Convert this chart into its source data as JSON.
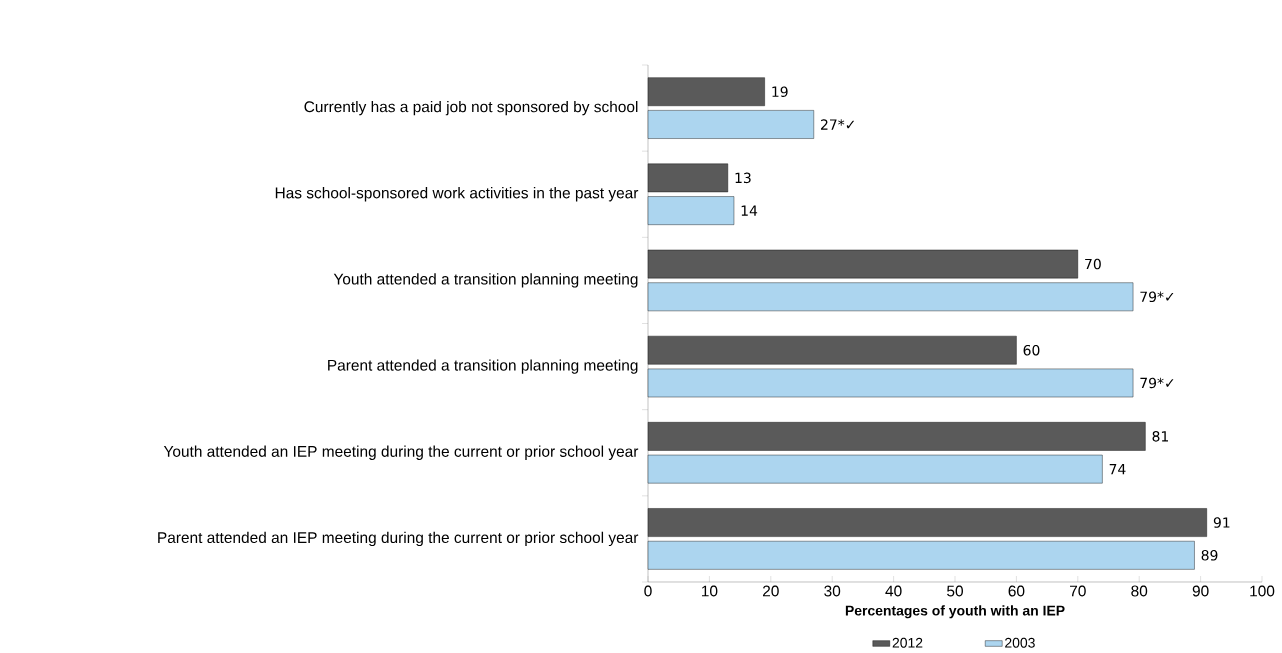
{
  "chart_data": {
    "type": "bar",
    "orientation": "horizontal",
    "categories": [
      "Currently has a paid job not sponsored by school",
      "Has school-sponsored work activities in the past year",
      "Youth attended a transition planning meeting",
      "Parent attended a transition planning meeting",
      "Youth attended an IEP meeting during the current or prior school year",
      "Parent attended an IEP meeting during the current or prior school year"
    ],
    "series": [
      {
        "name": "2012",
        "color": "#5a5a5a",
        "values": [
          19,
          13,
          70,
          60,
          81,
          91
        ],
        "value_labels": [
          "19",
          "13",
          "70",
          "60",
          "81",
          "91"
        ]
      },
      {
        "name": "2003",
        "color": "#acd5ef",
        "values": [
          27,
          14,
          79,
          79,
          74,
          89
        ],
        "value_labels": [
          "27*✓",
          "14",
          "79*✓",
          "79*✓",
          "74",
          "89"
        ]
      }
    ],
    "xlabel": "Percentages of youth with an IEP",
    "xlim": [
      0,
      100
    ],
    "xticks": [
      0,
      10,
      20,
      30,
      40,
      50,
      60,
      70,
      80,
      90,
      100
    ],
    "legend": "bottom",
    "grid": false
  }
}
